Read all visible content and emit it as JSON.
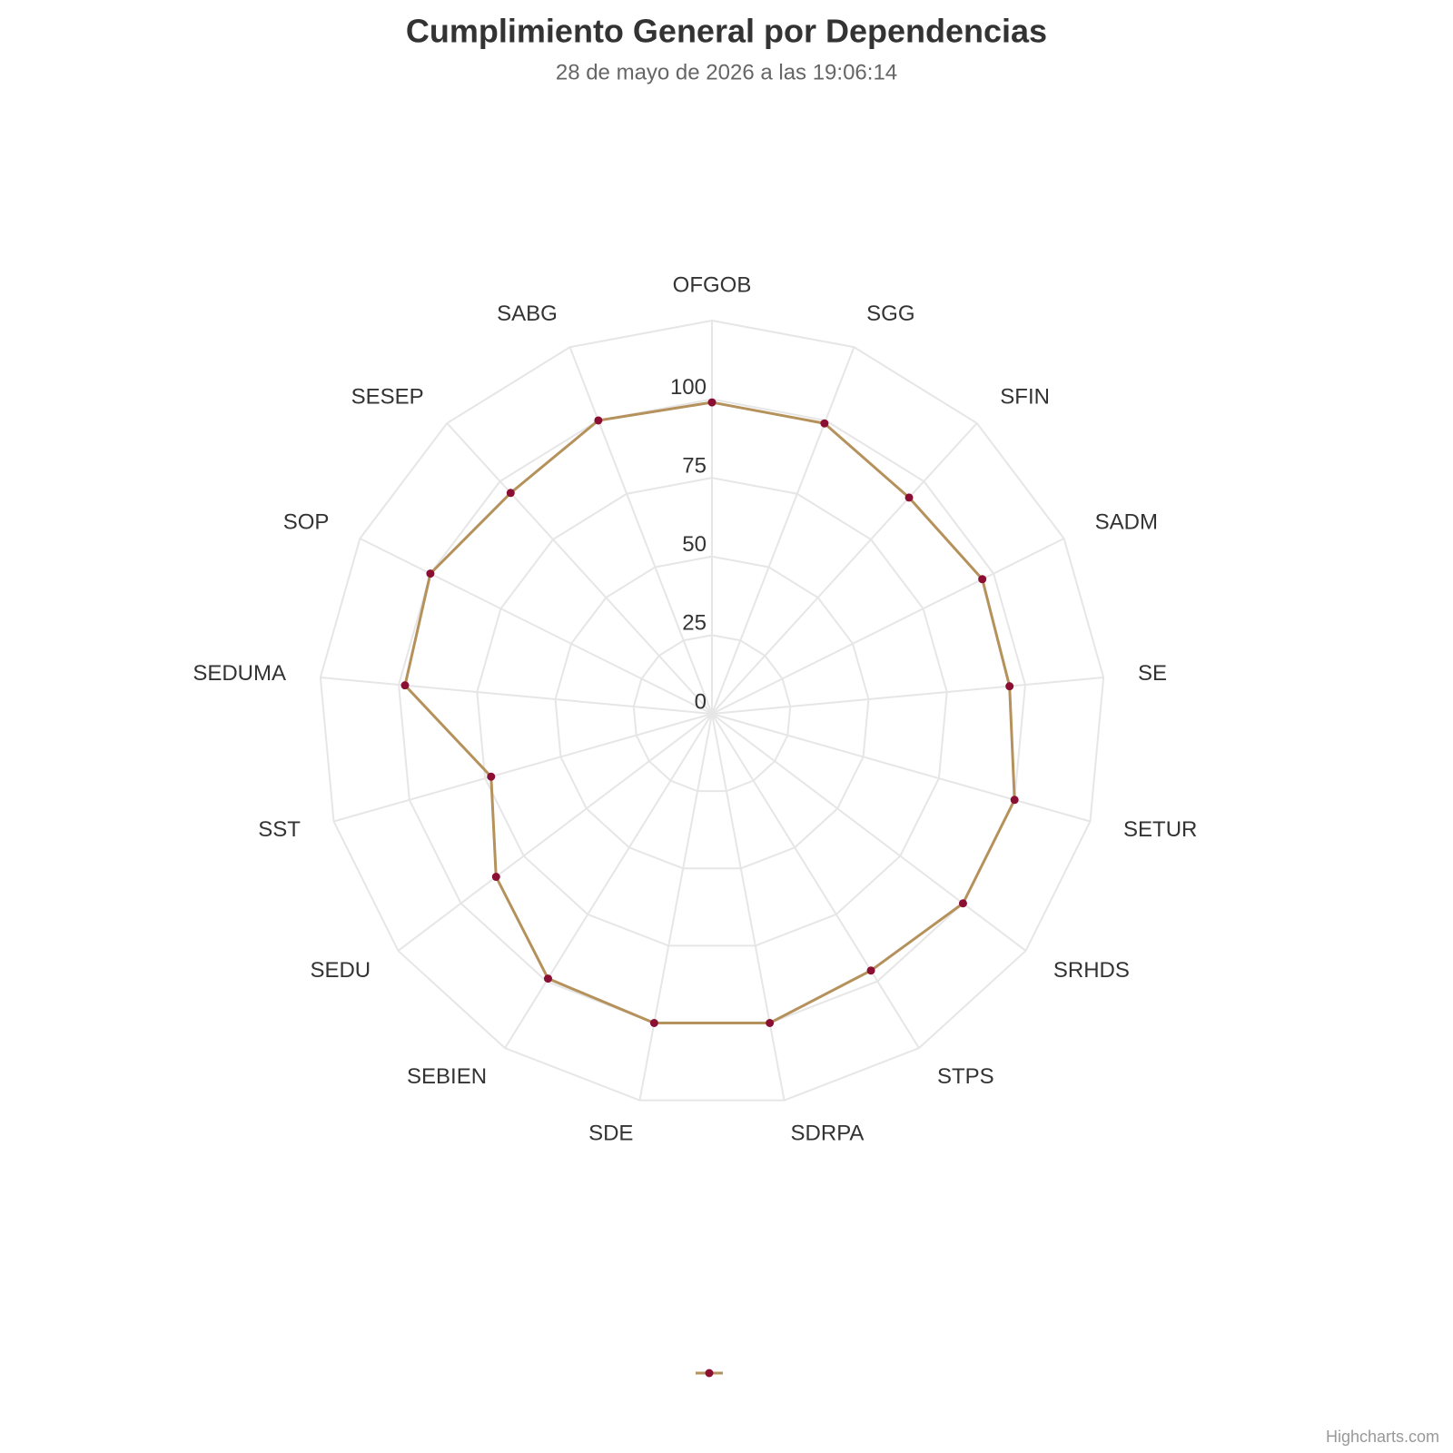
{
  "chart_data": {
    "type": "radar",
    "title": "Cumplimiento General por Dependencias",
    "subtitle": "28 de mayo de 2026 a las 19:06:14",
    "categories": [
      "OFGOB",
      "SGG",
      "SFIN",
      "SADM",
      "SE",
      "SETUR",
      "SRHDS",
      "STPS",
      "SDRPA",
      "SDE",
      "SEBIEN",
      "SEDU",
      "SST",
      "SEDUMA",
      "SOP",
      "SESEP",
      "SABG"
    ],
    "series": [
      {
        "color": "#b5915b",
        "marker_color": "#8b0f33",
        "values": [
          99,
          99,
          93,
          96,
          95,
          100,
          100,
          96,
          100,
          100,
          99,
          86,
          73,
          98,
          100,
          95,
          100
        ]
      }
    ],
    "ylim": [
      0,
      125
    ],
    "yticks": [
      0,
      25,
      50,
      75,
      100
    ],
    "grid": true,
    "credits": "Highcharts.com"
  }
}
